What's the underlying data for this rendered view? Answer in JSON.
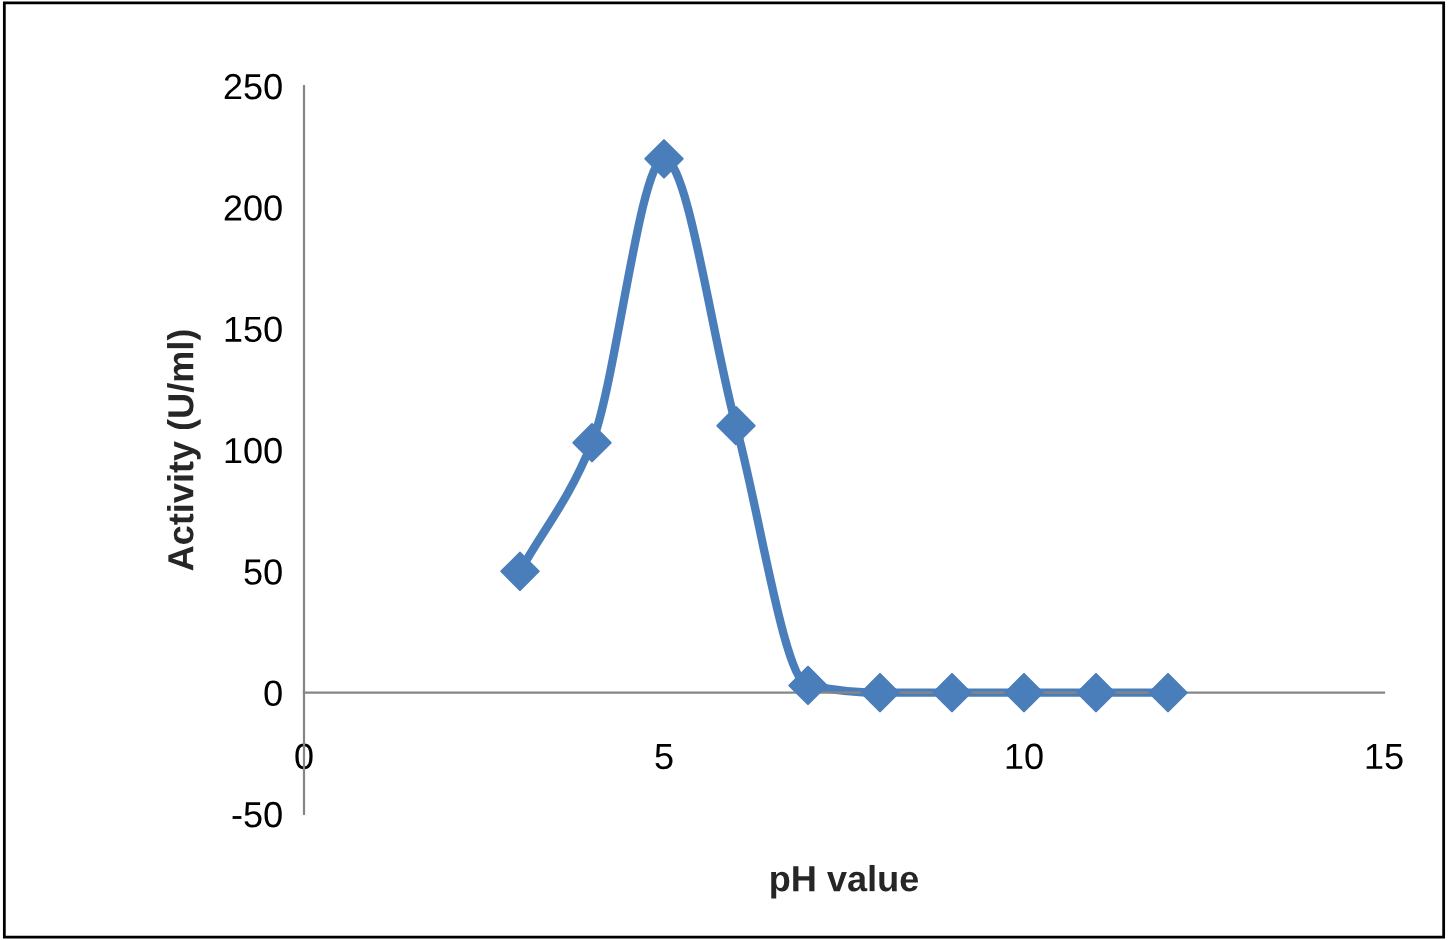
{
  "chart_data": {
    "type": "line",
    "xlabel": "pH value",
    "ylabel": "Activity (U/ml)",
    "x": [
      3,
      4,
      5,
      6,
      7,
      8,
      9,
      10,
      11,
      12
    ],
    "series": [
      {
        "color": "#4a7ebb",
        "values": [
          50,
          103,
          220,
          110,
          3,
          0,
          0,
          0,
          0,
          0
        ]
      }
    ],
    "xlim": [
      0,
      15
    ],
    "xticks": [
      0,
      5,
      10,
      15
    ],
    "ylim": [
      -50,
      250
    ],
    "yticks": [
      -50,
      0,
      50,
      100,
      150,
      200,
      250
    ],
    "marker": "diamond",
    "line_style": "solid",
    "grid": false,
    "legend": false
  }
}
